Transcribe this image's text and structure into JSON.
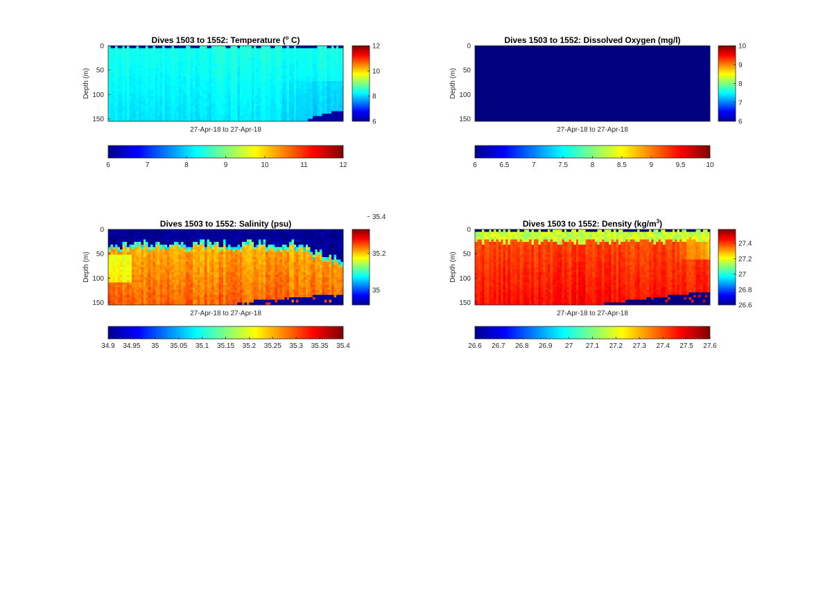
{
  "chart_data": [
    {
      "type": "heatmap",
      "title": "Dives 1503 to 1552: Temperature (",
      "title_sup": "o",
      "title_tail": " C)",
      "xlabel": "27-Apr-18 to 27-Apr-18",
      "ylabel": "Depth (m)",
      "ylim": [
        0,
        155
      ],
      "yticks": [
        "0",
        "50",
        "100",
        "150"
      ],
      "colormap": "jet",
      "clim": [
        6,
        12
      ],
      "side_colorbar_ticks": [
        "12",
        "10",
        "8",
        "6"
      ],
      "bottom_colorbar_ticks": [
        "6",
        "7",
        "8",
        "9",
        "10",
        "11",
        "12"
      ],
      "field": {
        "surface": 8.4,
        "mid": 8.3,
        "deep": 8.1,
        "bottom_mask_from_x": 0.85
      }
    },
    {
      "type": "heatmap",
      "title": "Dives 1503 to 1552: Dissolved Oxygen (mg/l)",
      "xlabel": "27-Apr-18 to 27-Apr-18",
      "ylabel": "Depth (m)",
      "ylim": [
        0,
        155
      ],
      "yticks": [
        "0",
        "50",
        "100",
        "150"
      ],
      "colormap": "jet",
      "clim": [
        6,
        10
      ],
      "side_colorbar_ticks": [
        "10",
        "9",
        "8",
        "7",
        "6"
      ],
      "bottom_colorbar_ticks": [
        "6",
        "6.5",
        "7",
        "7.5",
        "8",
        "8.5",
        "9",
        "9.5",
        "10"
      ],
      "field": {
        "uniform": 6.0
      }
    },
    {
      "type": "heatmap",
      "title": "Dives 1503 to 1552: Salinity (psu)",
      "xlabel": "27-Apr-18 to 27-Apr-18",
      "ylabel": "Depth (m)",
      "ylim": [
        0,
        155
      ],
      "yticks": [
        "0",
        "50",
        "100",
        "150"
      ],
      "colormap": "jet",
      "clim": [
        34.92,
        35.33
      ],
      "side_colorbar_ticks": [
        "35.4",
        "35.2",
        "35"
      ],
      "bottom_colorbar_ticks": [
        "34.9",
        "34.95",
        "35",
        "35.05",
        "35.1",
        "35.15",
        "35.2",
        "35.25",
        "35.3",
        "35.35",
        "35.4"
      ],
      "field": {
        "surface": 34.93,
        "upper": 35.2,
        "deep": 35.24,
        "mixed_layer_depth_m": 25
      }
    },
    {
      "type": "heatmap",
      "title": "Dives 1503 to 1552: Density (kg/m",
      "title_sup": "3",
      "title_tail": ")",
      "xlabel": "27-Apr-18 to 27-Apr-18",
      "ylabel": "Depth (m)",
      "ylim": [
        0,
        155
      ],
      "yticks": [
        "0",
        "50",
        "100",
        "150"
      ],
      "colormap": "jet",
      "clim": [
        26.6,
        27.58
      ],
      "side_colorbar_ticks": [
        "27.4",
        "27.2",
        "27",
        "26.8",
        "26.6"
      ],
      "bottom_colorbar_ticks": [
        "26.6",
        "26.7",
        "26.8",
        "26.9",
        "27",
        "27.1",
        "27.2",
        "27.3",
        "27.4",
        "27.5",
        "27.6"
      ],
      "field": {
        "surface": 27.25,
        "upper": 27.38,
        "deep": 27.45
      }
    }
  ]
}
